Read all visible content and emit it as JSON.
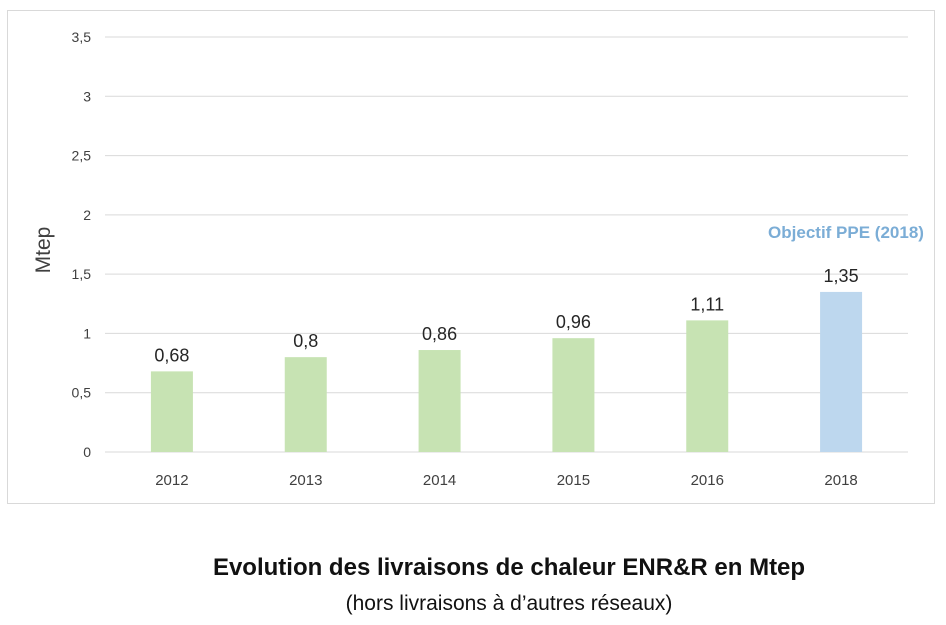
{
  "chart_data": {
    "type": "bar",
    "categories": [
      "2012",
      "2013",
      "2014",
      "2015",
      "2016",
      "2018"
    ],
    "values": [
      0.68,
      0.8,
      0.86,
      0.96,
      1.11,
      1.35
    ],
    "data_labels": [
      "0,68",
      "0,8",
      "0,86",
      "0,96",
      "1,11",
      "1,35"
    ],
    "ylabel": "Mtep",
    "ylim": [
      0,
      3.5
    ],
    "yticks": [
      0,
      0.5,
      1,
      1.5,
      2,
      2.5,
      3,
      3.5
    ],
    "ytick_labels": [
      "0",
      "0,5",
      "1",
      "1,5",
      "2",
      "2,5",
      "3",
      "3,5"
    ],
    "grid": true,
    "annotation": "Objectif PPE (2018)",
    "bar_colors": [
      "#c7e3b3",
      "#c7e3b3",
      "#c7e3b3",
      "#c7e3b3",
      "#c7e3b3",
      "#bdd7ee"
    ],
    "annotation_color": "#7badd6",
    "gridline_color": "#d9d9d9",
    "text_color": "#404040"
  },
  "caption": {
    "title": "Evolution des livraisons de chaleur ENR&R en Mtep",
    "subtitle": "(hors livraisons à d’autres réseaux)"
  }
}
